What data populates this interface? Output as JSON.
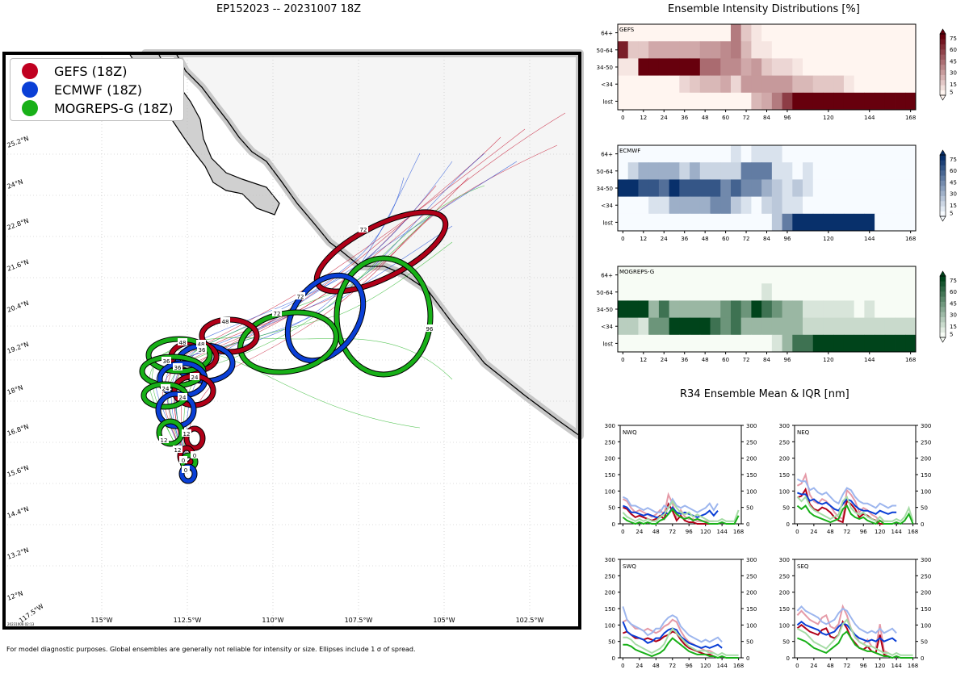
{
  "header": {
    "map_title": "EP152023 -- 20231007 18Z",
    "intensity_title": "Ensemble Intensity Distributions [%]",
    "r34_title": "R34 Ensemble Mean & IQR [nm]"
  },
  "legend": [
    {
      "label": "GEFS (18Z)",
      "color": "#c00020"
    },
    {
      "label": "ECMWF (18Z)",
      "color": "#0a3fd6"
    },
    {
      "label": "MOGREPS-G (18Z)",
      "color": "#18b018"
    }
  ],
  "map": {
    "lat_labels": [
      "25.2°N",
      "24°N",
      "22.8°N",
      "21.6°N",
      "20.4°N",
      "19.2°N",
      "18°N",
      "16.8°N",
      "15.6°N",
      "14.4°N",
      "13.2°N",
      "12°N"
    ],
    "lon_labels": [
      "115°W",
      "112.5°W",
      "110°W",
      "107.5°W",
      "105°W",
      "102.5°W"
    ],
    "corner_lon": "117.5°W",
    "stamp": "20231008 02:13",
    "ellipse_labels": {
      "gefs": [
        "0",
        "12",
        "24",
        "36",
        "48",
        "72"
      ],
      "ecmwf": [
        "0",
        "12",
        "24",
        "36",
        "48",
        "72"
      ],
      "mogreps": [
        "0",
        "12",
        "24",
        "36",
        "48",
        "72",
        "96"
      ]
    }
  },
  "footnote": "For model diagnostic purposes. Global ensembles are generally not reliable for intensity or size. Ellipses include 1 σ of spread.",
  "chart_data": [
    {
      "type": "heatmap",
      "title": "Ensemble Intensity Distributions [%]",
      "panel": "GEFS",
      "rows": [
        "64+",
        "50-64",
        "34-50",
        "<34",
        "lost"
      ],
      "x": [
        0,
        6,
        12,
        18,
        24,
        30,
        36,
        42,
        48,
        54,
        60,
        66,
        72,
        78,
        84,
        90,
        96,
        102,
        108,
        114,
        120,
        126,
        132,
        138,
        144,
        150,
        156,
        162,
        168
      ],
      "xticks": [
        0,
        12,
        24,
        36,
        48,
        60,
        72,
        84,
        96,
        120,
        144,
        168
      ],
      "colorbar_ticks": [
        5,
        15,
        30,
        45,
        60,
        75
      ],
      "values": [
        [
          0,
          0,
          0,
          0,
          0,
          0,
          0,
          0,
          0,
          0,
          0,
          40,
          15,
          5,
          0,
          0,
          0,
          0,
          0,
          0,
          0,
          0,
          0,
          0,
          0,
          0,
          0,
          0,
          0
        ],
        [
          70,
          15,
          15,
          25,
          25,
          25,
          25,
          25,
          30,
          30,
          35,
          40,
          20,
          5,
          5,
          0,
          0,
          0,
          0,
          0,
          0,
          0,
          0,
          0,
          0,
          0,
          0,
          0,
          0
        ],
        [
          5,
          5,
          80,
          80,
          80,
          80,
          80,
          80,
          45,
          45,
          35,
          35,
          25,
          30,
          15,
          10,
          10,
          5,
          0,
          0,
          0,
          0,
          0,
          0,
          0,
          0,
          0,
          0,
          0
        ],
        [
          0,
          0,
          0,
          0,
          0,
          0,
          10,
          15,
          20,
          20,
          25,
          10,
          30,
          30,
          30,
          30,
          30,
          20,
          20,
          15,
          15,
          15,
          5,
          0,
          0,
          0,
          0,
          0,
          0
        ],
        [
          0,
          0,
          0,
          0,
          0,
          0,
          0,
          0,
          0,
          0,
          0,
          0,
          0,
          20,
          25,
          40,
          60,
          80,
          80,
          80,
          80,
          80,
          80,
          80,
          80,
          80,
          80,
          80,
          80
        ]
      ]
    },
    {
      "type": "heatmap",
      "panel": "ECMWF",
      "rows": [
        "64+",
        "50-64",
        "34-50",
        "<34",
        "lost"
      ],
      "x": [
        0,
        6,
        12,
        18,
        24,
        30,
        36,
        42,
        48,
        54,
        60,
        66,
        72,
        78,
        84,
        90,
        96,
        102,
        108,
        114,
        120,
        126,
        132,
        138,
        144,
        150,
        156,
        162,
        168
      ],
      "xticks": [
        0,
        12,
        24,
        36,
        48,
        60,
        72,
        84,
        96,
        120,
        144,
        168
      ],
      "colorbar_ticks": [
        5,
        15,
        30,
        45,
        60,
        75
      ],
      "values": [
        [
          0,
          0,
          0,
          0,
          0,
          0,
          0,
          0,
          0,
          0,
          0,
          10,
          0,
          10,
          10,
          10,
          0,
          0,
          0,
          0,
          0,
          0,
          0,
          0,
          0,
          0,
          0,
          0,
          0
        ],
        [
          0,
          15,
          30,
          30,
          30,
          30,
          15,
          30,
          15,
          15,
          15,
          15,
          50,
          50,
          50,
          10,
          10,
          0,
          10,
          0,
          0,
          0,
          0,
          0,
          0,
          0,
          0,
          0,
          0
        ],
        [
          85,
          85,
          65,
          65,
          55,
          85,
          65,
          65,
          65,
          65,
          45,
          60,
          45,
          45,
          30,
          20,
          10,
          20,
          10,
          0,
          0,
          0,
          0,
          0,
          0,
          0,
          0,
          0,
          0
        ],
        [
          0,
          0,
          0,
          10,
          10,
          30,
          30,
          30,
          30,
          45,
          45,
          20,
          10,
          0,
          15,
          20,
          10,
          10,
          0,
          0,
          0,
          0,
          0,
          0,
          0,
          0,
          0,
          0,
          0
        ],
        [
          0,
          0,
          0,
          0,
          0,
          0,
          0,
          0,
          0,
          0,
          0,
          0,
          0,
          0,
          0,
          20,
          50,
          80,
          80,
          80,
          80,
          80,
          80,
          80,
          80,
          0,
          0,
          0,
          0
        ]
      ]
    },
    {
      "type": "heatmap",
      "panel": "MOGREPS-G",
      "rows": [
        "64+",
        "50-64",
        "34-50",
        "<34",
        "lost"
      ],
      "x": [
        0,
        6,
        12,
        18,
        24,
        30,
        36,
        42,
        48,
        54,
        60,
        66,
        72,
        78,
        84,
        90,
        96,
        102,
        108,
        114,
        120,
        126,
        132,
        138,
        144,
        150,
        156,
        162,
        168
      ],
      "xticks": [
        0,
        12,
        24,
        36,
        48,
        60,
        72,
        84,
        96,
        120,
        144,
        168
      ],
      "colorbar_ticks": [
        5,
        15,
        30,
        45,
        60,
        75
      ],
      "values": [
        [
          0,
          0,
          0,
          0,
          0,
          0,
          0,
          0,
          0,
          0,
          0,
          0,
          0,
          0,
          0,
          0,
          0,
          0,
          0,
          0,
          0,
          0,
          0,
          0,
          0,
          0,
          0,
          0,
          0
        ],
        [
          0,
          0,
          0,
          0,
          0,
          0,
          0,
          0,
          0,
          0,
          0,
          0,
          0,
          0,
          10,
          0,
          0,
          0,
          0,
          0,
          0,
          0,
          0,
          0,
          0,
          0,
          0,
          0,
          0
        ],
        [
          80,
          80,
          80,
          30,
          60,
          30,
          30,
          30,
          30,
          30,
          45,
          60,
          45,
          80,
          60,
          45,
          30,
          30,
          10,
          10,
          10,
          10,
          10,
          0,
          10,
          0,
          0,
          0,
          0
        ],
        [
          20,
          20,
          10,
          45,
          45,
          80,
          80,
          80,
          80,
          60,
          45,
          60,
          30,
          30,
          30,
          30,
          30,
          30,
          15,
          15,
          15,
          15,
          15,
          15,
          15,
          15,
          15,
          15,
          15
        ],
        [
          0,
          0,
          0,
          0,
          0,
          0,
          0,
          0,
          0,
          0,
          0,
          0,
          0,
          0,
          0,
          10,
          30,
          60,
          60,
          80,
          80,
          80,
          80,
          80,
          80,
          80,
          80,
          80,
          80
        ]
      ]
    },
    {
      "type": "line",
      "title": "R34 Ensemble Mean & IQR [nm]",
      "panel": "NWQ",
      "x": [
        0,
        6,
        12,
        18,
        24,
        30,
        36,
        42,
        48,
        54,
        60,
        66,
        72,
        78,
        84,
        90,
        96,
        102,
        108,
        114,
        120,
        126,
        132,
        138,
        144,
        150,
        156,
        162,
        168
      ],
      "xticks": [
        0,
        24,
        48,
        72,
        96,
        120,
        144,
        168
      ],
      "ylim": [
        0,
        300
      ],
      "yticks": [
        0,
        50,
        100,
        150,
        200,
        250,
        300
      ],
      "series": [
        {
          "name": "GEFS",
          "values": [
            50,
            45,
            30,
            20,
            25,
            20,
            15,
            10,
            15,
            25,
            15,
            60,
            40,
            10,
            25,
            10,
            5,
            5,
            0,
            0,
            0,
            0,
            0,
            null,
            null,
            null,
            null,
            null,
            null
          ]
        },
        {
          "name": "ECMWF",
          "values": [
            55,
            50,
            35,
            35,
            30,
            25,
            30,
            25,
            20,
            20,
            35,
            30,
            50,
            35,
            30,
            35,
            30,
            25,
            20,
            25,
            30,
            40,
            25,
            40,
            null,
            null,
            null,
            null,
            null
          ]
        },
        {
          "name": "MOGREPS-G",
          "values": [
            20,
            10,
            5,
            0,
            5,
            0,
            5,
            0,
            0,
            10,
            15,
            30,
            45,
            30,
            20,
            15,
            20,
            10,
            15,
            10,
            5,
            0,
            0,
            0,
            5,
            0,
            0,
            0,
            25
          ]
        }
      ]
    },
    {
      "type": "line",
      "panel": "NEQ",
      "x": [
        0,
        6,
        12,
        18,
        24,
        30,
        36,
        42,
        48,
        54,
        60,
        66,
        72,
        78,
        84,
        90,
        96,
        102,
        108,
        114,
        120,
        126,
        132,
        138,
        144,
        150,
        156,
        162,
        168
      ],
      "xticks": [
        0,
        24,
        48,
        72,
        96,
        120,
        144,
        168
      ],
      "ylim": [
        0,
        300
      ],
      "yticks": [
        0,
        50,
        100,
        150,
        200,
        250,
        300
      ],
      "series": [
        {
          "name": "GEFS",
          "values": [
            80,
            85,
            105,
            60,
            45,
            40,
            50,
            45,
            35,
            20,
            10,
            5,
            70,
            60,
            45,
            20,
            30,
            25,
            15,
            10,
            0,
            0,
            0,
            null,
            null,
            null,
            null,
            null,
            null
          ]
        },
        {
          "name": "ECMWF",
          "values": [
            95,
            90,
            90,
            70,
            75,
            65,
            60,
            65,
            55,
            45,
            40,
            60,
            75,
            70,
            55,
            45,
            40,
            40,
            35,
            30,
            40,
            35,
            30,
            35,
            35,
            null,
            null,
            null,
            null
          ]
        },
        {
          "name": "MOGREPS-G",
          "values": [
            55,
            45,
            55,
            35,
            25,
            20,
            15,
            10,
            5,
            10,
            15,
            45,
            55,
            30,
            20,
            15,
            20,
            10,
            5,
            0,
            10,
            0,
            0,
            0,
            5,
            0,
            10,
            30,
            0
          ]
        }
      ]
    },
    {
      "type": "line",
      "panel": "SWQ",
      "x": [
        0,
        6,
        12,
        18,
        24,
        30,
        36,
        42,
        48,
        54,
        60,
        66,
        72,
        78,
        84,
        90,
        96,
        102,
        108,
        114,
        120,
        126,
        132,
        138,
        144,
        150,
        156,
        162,
        168
      ],
      "xticks": [
        0,
        24,
        48,
        72,
        96,
        120,
        144,
        168
      ],
      "ylim": [
        0,
        300
      ],
      "yticks": [
        0,
        50,
        100,
        150,
        200,
        250,
        300
      ],
      "series": [
        {
          "name": "GEFS",
          "values": [
            75,
            80,
            70,
            60,
            60,
            55,
            60,
            55,
            50,
            55,
            65,
            70,
            80,
            75,
            55,
            40,
            30,
            25,
            20,
            15,
            10,
            10,
            5,
            null,
            null,
            null,
            null,
            null,
            null
          ]
        },
        {
          "name": "ECMWF",
          "values": [
            110,
            80,
            70,
            65,
            60,
            55,
            45,
            50,
            60,
            60,
            75,
            85,
            90,
            85,
            65,
            55,
            45,
            40,
            35,
            30,
            35,
            30,
            35,
            40,
            30,
            null,
            null,
            null,
            null
          ]
        },
        {
          "name": "MOGREPS-G",
          "values": [
            40,
            40,
            35,
            25,
            20,
            15,
            10,
            5,
            10,
            15,
            25,
            45,
            60,
            50,
            40,
            30,
            20,
            15,
            10,
            10,
            10,
            5,
            5,
            0,
            5,
            0,
            0,
            0,
            0
          ]
        }
      ]
    },
    {
      "type": "line",
      "panel": "SEQ",
      "x": [
        0,
        6,
        12,
        18,
        24,
        30,
        36,
        42,
        48,
        54,
        60,
        66,
        72,
        78,
        84,
        90,
        96,
        102,
        108,
        114,
        120,
        126,
        132,
        138,
        144,
        150,
        156,
        162,
        168
      ],
      "xticks": [
        0,
        24,
        48,
        72,
        96,
        120,
        144,
        168
      ],
      "ylim": [
        0,
        300
      ],
      "yticks": [
        0,
        50,
        100,
        150,
        200,
        250,
        300
      ],
      "series": [
        {
          "name": "GEFS",
          "values": [
            90,
            100,
            90,
            80,
            75,
            70,
            85,
            90,
            65,
            60,
            70,
            110,
            90,
            60,
            45,
            30,
            25,
            35,
            20,
            15,
            70,
            10,
            5,
            null,
            null,
            null,
            null,
            null,
            null
          ]
        },
        {
          "name": "ECMWF",
          "values": [
            100,
            110,
            100,
            95,
            90,
            85,
            75,
            70,
            75,
            80,
            95,
            105,
            100,
            85,
            70,
            60,
            55,
            50,
            55,
            50,
            60,
            50,
            55,
            60,
            50,
            null,
            null,
            null,
            null
          ]
        },
        {
          "name": "MOGREPS-G",
          "values": [
            60,
            55,
            50,
            40,
            30,
            25,
            20,
            15,
            25,
            35,
            45,
            70,
            80,
            60,
            40,
            30,
            25,
            20,
            20,
            15,
            10,
            5,
            5,
            0,
            5,
            0,
            0,
            0,
            0
          ]
        }
      ]
    }
  ]
}
